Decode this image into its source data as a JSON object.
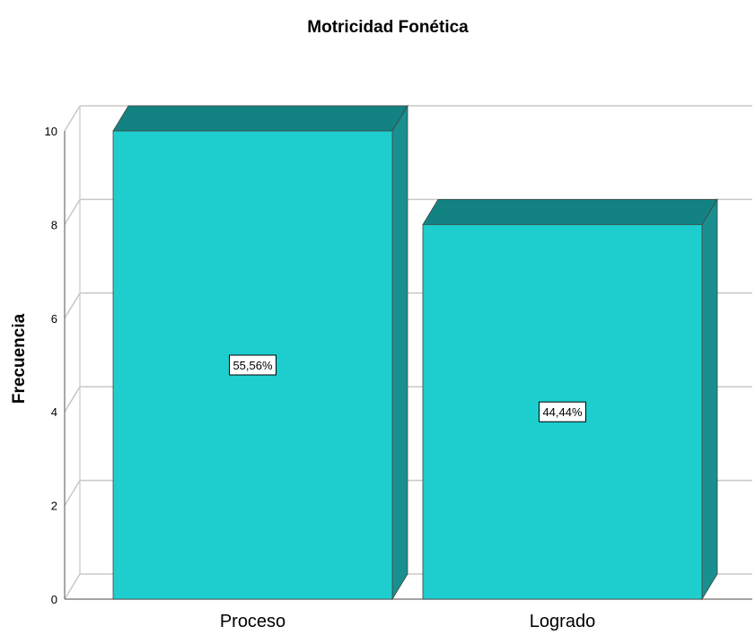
{
  "chart_data": {
    "type": "bar",
    "title": "Motricidad Fonética",
    "xlabel": "",
    "ylabel": "Frecuencia",
    "categories": [
      "Proceso",
      "Logrado"
    ],
    "values": [
      10,
      8
    ],
    "data_labels": [
      "55,56%",
      "44,44%"
    ],
    "ylim": [
      0,
      10
    ],
    "yticks": [
      0,
      2,
      4,
      6,
      8,
      10
    ],
    "grid": true,
    "legend": "none",
    "style": "3d-bar"
  },
  "colors": {
    "bar_front": "#1ECECE",
    "bar_top": "#138282",
    "bar_side": "#1A8F8F",
    "grid": "#C8C8C8",
    "axis": "#6E6E6E"
  }
}
